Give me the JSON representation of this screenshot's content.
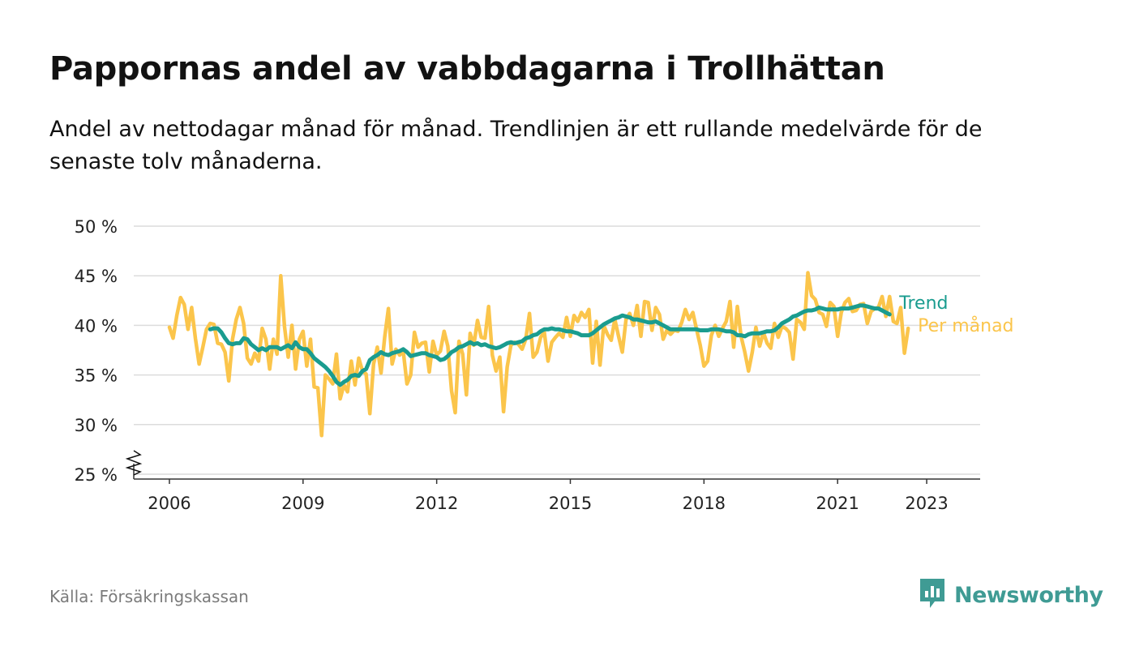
{
  "title": "Pappornas andel av vabbdagarna i Trollhättan",
  "subtitle": "Andel av nettodagar månad för månad. Trendlinjen är ett rullande medelvärde för de senaste tolv månaderna.",
  "source": "Källa: Försäkringskassan",
  "brand": {
    "name": "Newsworthy",
    "icon": "newsworthy-logo-icon",
    "color": "#3f9b94"
  },
  "colors": {
    "monthly": "#fbc54b",
    "trend": "#1a9c8f",
    "grid": "#dcdcdc",
    "axis": "#333333"
  },
  "chart_data": {
    "type": "line",
    "ylim": [
      25,
      50
    ],
    "y_ticks": [
      {
        "value": 25,
        "label": "25 %"
      },
      {
        "value": 30,
        "label": "30 %"
      },
      {
        "value": 35,
        "label": "35 %"
      },
      {
        "value": 40,
        "label": "40 %"
      },
      {
        "value": 45,
        "label": "45 %"
      },
      {
        "value": 50,
        "label": "50 %"
      }
    ],
    "x_ticks": [
      2006,
      2009,
      2012,
      2015,
      2018,
      2021,
      2023
    ],
    "xlim": [
      2005.2,
      2024.2
    ],
    "y_axis_break": true,
    "grid": true,
    "series": [
      {
        "name": "Per månad",
        "color": "#fbc54b",
        "x_start": 2006.0,
        "x_step": 0.0833333,
        "values": [
          39.8,
          38.7,
          41.0,
          42.8,
          42.1,
          39.6,
          41.8,
          38.7,
          36.1,
          37.8,
          39.6,
          40.2,
          40.1,
          38.2,
          38.1,
          37.3,
          34.4,
          38.6,
          40.6,
          41.8,
          40.2,
          36.7,
          36.1,
          37.2,
          36.4,
          39.7,
          38.6,
          35.6,
          38.6,
          37.1,
          45.0,
          39.9,
          36.8,
          40.0,
          35.6,
          38.6,
          39.4,
          35.9,
          38.6,
          33.8,
          33.7,
          28.9,
          35.0,
          34.6,
          34.1,
          37.1,
          32.6,
          34.0,
          33.3,
          36.4,
          34.0,
          36.7,
          35.4,
          35.1,
          31.1,
          36.1,
          37.8,
          35.2,
          38.8,
          41.7,
          36.1,
          37.6,
          37.0,
          37.4,
          34.1,
          35.0,
          39.3,
          37.8,
          38.2,
          38.3,
          35.3,
          38.4,
          37.0,
          37.4,
          39.4,
          37.9,
          33.4,
          31.2,
          38.4,
          37.1,
          33.0,
          39.2,
          38.0,
          40.5,
          38.8,
          38.7,
          41.9,
          37.0,
          35.4,
          36.8,
          31.3,
          35.8,
          38.0,
          38.3,
          38.1,
          37.6,
          38.6,
          41.2,
          36.8,
          37.3,
          38.8,
          39.3,
          36.4,
          38.3,
          38.8,
          39.2,
          38.8,
          40.8,
          38.9,
          41.0,
          40.4,
          41.3,
          40.8,
          41.6,
          36.2,
          40.4,
          36.0,
          40.0,
          39.1,
          38.5,
          40.6,
          38.9,
          37.3,
          40.6,
          41.2,
          40.0,
          42.0,
          38.9,
          42.4,
          42.3,
          39.5,
          41.8,
          41.1,
          38.6,
          39.5,
          39.1,
          39.5,
          39.4,
          40.3,
          41.6,
          40.6,
          41.3,
          39.6,
          38.0,
          35.9,
          36.4,
          39.0,
          40.0,
          38.9,
          39.7,
          40.4,
          42.4,
          37.8,
          41.9,
          38.9,
          37.3,
          35.4,
          37.3,
          39.8,
          37.9,
          39.3,
          38.2,
          37.7,
          40.2,
          38.8,
          39.9,
          39.7,
          39.3,
          36.6,
          40.6,
          40.3,
          39.6,
          45.3,
          43.0,
          42.6,
          41.3,
          41.1,
          39.9,
          42.3,
          41.9,
          38.9,
          41.3,
          42.3,
          42.7,
          41.4,
          41.5,
          42.1,
          42.2,
          40.2,
          41.4,
          41.7,
          41.8,
          42.9,
          40.9,
          42.9,
          40.4,
          40.2,
          41.8,
          37.2,
          39.7
        ]
      },
      {
        "name": "Trend",
        "color": "#1a9c8f",
        "x_start": 2006.9167,
        "x_step": 0.0833333,
        "values": [
          39.6,
          39.7,
          39.7,
          39.3,
          38.7,
          38.2,
          38.1,
          38.2,
          38.2,
          38.7,
          38.6,
          38.1,
          37.8,
          37.5,
          37.7,
          37.5,
          37.8,
          37.8,
          37.8,
          37.6,
          37.8,
          38.0,
          37.7,
          38.3,
          37.8,
          37.6,
          37.6,
          37.2,
          36.7,
          36.4,
          36.1,
          35.8,
          35.4,
          34.9,
          34.3,
          34.0,
          34.3,
          34.5,
          34.9,
          35.0,
          34.9,
          35.4,
          35.6,
          36.5,
          36.8,
          37.0,
          37.3,
          37.1,
          37.0,
          37.2,
          37.3,
          37.4,
          37.6,
          37.3,
          36.9,
          37.0,
          37.1,
          37.2,
          37.2,
          37.0,
          36.9,
          36.8,
          36.5,
          36.6,
          36.9,
          37.3,
          37.5,
          37.8,
          37.9,
          38.1,
          38.3,
          38.1,
          38.2,
          38.0,
          38.1,
          37.9,
          37.8,
          37.7,
          37.8,
          38.0,
          38.2,
          38.3,
          38.2,
          38.3,
          38.4,
          38.7,
          38.8,
          39.0,
          39.1,
          39.4,
          39.6,
          39.6,
          39.7,
          39.6,
          39.6,
          39.5,
          39.4,
          39.4,
          39.3,
          39.2,
          39.0,
          39.0,
          39.0,
          39.2,
          39.5,
          39.8,
          40.1,
          40.3,
          40.5,
          40.7,
          40.8,
          41.0,
          40.9,
          40.8,
          40.6,
          40.6,
          40.5,
          40.4,
          40.3,
          40.3,
          40.4,
          40.2,
          40.0,
          39.8,
          39.6,
          39.6,
          39.6,
          39.6,
          39.6,
          39.6,
          39.6,
          39.6,
          39.5,
          39.5,
          39.5,
          39.6,
          39.6,
          39.6,
          39.5,
          39.4,
          39.4,
          39.3,
          39.0,
          39.0,
          38.9,
          39.1,
          39.2,
          39.2,
          39.2,
          39.3,
          39.4,
          39.4,
          39.5,
          39.8,
          40.2,
          40.4,
          40.6,
          40.9,
          41.0,
          41.2,
          41.4,
          41.5,
          41.5,
          41.6,
          41.8,
          41.7,
          41.6,
          41.6,
          41.6,
          41.6,
          41.7,
          41.7,
          41.7,
          41.8,
          41.9,
          42.0,
          42.0,
          41.9,
          41.8,
          41.7,
          41.7,
          41.5,
          41.3,
          41.1
        ]
      }
    ],
    "end_labels": [
      {
        "text": "Trend",
        "series": "Trend"
      },
      {
        "text": "Per månad",
        "series": "Per månad"
      }
    ]
  }
}
